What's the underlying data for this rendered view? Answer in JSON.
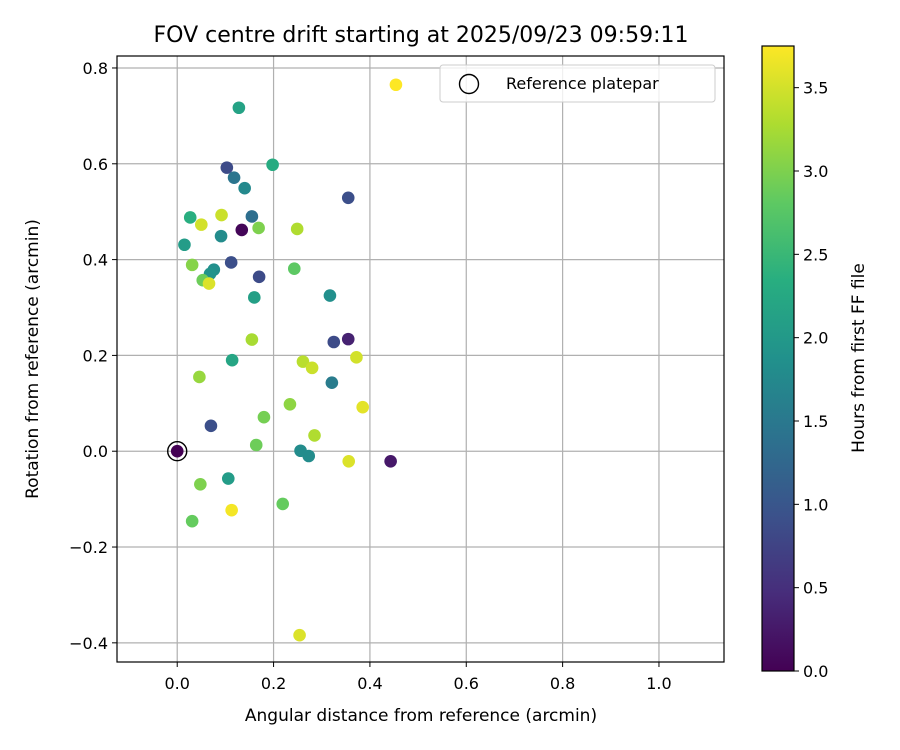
{
  "chart_data": {
    "type": "scatter",
    "title": "FOV centre drift starting at 2025/09/23 09:59:11",
    "xlabel": "Angular distance from reference (arcmin)",
    "ylabel": "Rotation from reference (arcmin)",
    "xlim": [
      -0.125,
      1.135
    ],
    "ylim": [
      -0.44,
      0.825
    ],
    "xticks": [
      0.0,
      0.2,
      0.4,
      0.6,
      0.8,
      1.0
    ],
    "xtick_labels": [
      "0.0",
      "0.2",
      "0.4",
      "0.6",
      "0.8",
      "1.0"
    ],
    "yticks": [
      -0.4,
      -0.2,
      0.0,
      0.2,
      0.4,
      0.6,
      0.8
    ],
    "ytick_labels": [
      "−0.4",
      "−0.2",
      "0.0",
      "0.2",
      "0.4",
      "0.6",
      "0.8"
    ],
    "grid": true,
    "legend": {
      "placement": "top-right",
      "label": "Reference platepar"
    },
    "reference_point": {
      "x": 0.0,
      "y": 0.0
    },
    "colorbar": {
      "label": "Hours from first FF file",
      "range": [
        0.0,
        3.75
      ],
      "ticks": [
        0.0,
        0.5,
        1.0,
        1.5,
        2.0,
        2.5,
        3.0,
        3.5
      ],
      "tick_labels": [
        "0.0",
        "0.5",
        "1.0",
        "1.5",
        "2.0",
        "2.5",
        "3.0",
        "3.5"
      ],
      "colormap": "viridis"
    },
    "points": [
      {
        "x": 0.0,
        "y": 0.0,
        "h": 0.0
      },
      {
        "x": 0.134,
        "y": 0.462,
        "h": 0.05
      },
      {
        "x": 0.443,
        "y": -0.021,
        "h": 0.25
      },
      {
        "x": 0.355,
        "y": 0.234,
        "h": 0.35
      },
      {
        "x": 0.103,
        "y": 0.592,
        "h": 0.85
      },
      {
        "x": 0.355,
        "y": 0.529,
        "h": 0.9
      },
      {
        "x": 0.112,
        "y": 0.394,
        "h": 0.9
      },
      {
        "x": 0.17,
        "y": 0.364,
        "h": 0.85
      },
      {
        "x": 0.07,
        "y": 0.053,
        "h": 0.9
      },
      {
        "x": 0.325,
        "y": 0.228,
        "h": 0.85
      },
      {
        "x": 0.118,
        "y": 0.571,
        "h": 1.45
      },
      {
        "x": 0.155,
        "y": 0.49,
        "h": 1.35
      },
      {
        "x": 0.321,
        "y": 0.143,
        "h": 1.55
      },
      {
        "x": 0.14,
        "y": 0.549,
        "h": 1.75
      },
      {
        "x": 0.091,
        "y": 0.449,
        "h": 1.8
      },
      {
        "x": 0.076,
        "y": 0.379,
        "h": 1.85
      },
      {
        "x": 0.068,
        "y": 0.37,
        "h": 1.9
      },
      {
        "x": 0.256,
        "y": 0.001,
        "h": 1.8
      },
      {
        "x": 0.273,
        "y": -0.01,
        "h": 1.8
      },
      {
        "x": 0.317,
        "y": 0.325,
        "h": 1.85
      },
      {
        "x": 0.015,
        "y": 0.431,
        "h": 2.05
      },
      {
        "x": 0.16,
        "y": 0.321,
        "h": 2.1
      },
      {
        "x": 0.106,
        "y": -0.057,
        "h": 2.05
      },
      {
        "x": 0.128,
        "y": 0.717,
        "h": 2.15
      },
      {
        "x": 0.114,
        "y": 0.19,
        "h": 2.2
      },
      {
        "x": 0.198,
        "y": 0.598,
        "h": 2.3
      },
      {
        "x": 0.027,
        "y": 0.488,
        "h": 2.35
      },
      {
        "x": 0.243,
        "y": 0.381,
        "h": 2.8
      },
      {
        "x": 0.219,
        "y": -0.11,
        "h": 2.85
      },
      {
        "x": 0.031,
        "y": -0.146,
        "h": 2.85
      },
      {
        "x": 0.053,
        "y": 0.357,
        "h": 2.9
      },
      {
        "x": 0.164,
        "y": 0.013,
        "h": 2.9
      },
      {
        "x": 0.18,
        "y": 0.071,
        "h": 2.95
      },
      {
        "x": 0.048,
        "y": -0.069,
        "h": 3.0
      },
      {
        "x": 0.169,
        "y": 0.466,
        "h": 3.0
      },
      {
        "x": 0.031,
        "y": 0.389,
        "h": 3.05
      },
      {
        "x": 0.234,
        "y": 0.098,
        "h": 3.1
      },
      {
        "x": 0.046,
        "y": 0.155,
        "h": 3.15
      },
      {
        "x": 0.155,
        "y": 0.233,
        "h": 3.25
      },
      {
        "x": 0.285,
        "y": 0.033,
        "h": 3.3
      },
      {
        "x": 0.249,
        "y": 0.464,
        "h": 3.3
      },
      {
        "x": 0.261,
        "y": 0.187,
        "h": 3.35
      },
      {
        "x": 0.092,
        "y": 0.493,
        "h": 3.45
      },
      {
        "x": 0.05,
        "y": 0.473,
        "h": 3.5
      },
      {
        "x": 0.372,
        "y": 0.196,
        "h": 3.5
      },
      {
        "x": 0.28,
        "y": 0.174,
        "h": 3.45
      },
      {
        "x": 0.066,
        "y": 0.35,
        "h": 3.55
      },
      {
        "x": 0.356,
        "y": -0.021,
        "h": 3.55
      },
      {
        "x": 0.385,
        "y": 0.092,
        "h": 3.6
      },
      {
        "x": 0.113,
        "y": -0.123,
        "h": 3.7
      },
      {
        "x": 0.454,
        "y": 0.765,
        "h": 3.75
      },
      {
        "x": 0.254,
        "y": -0.384,
        "h": 3.55
      }
    ]
  }
}
